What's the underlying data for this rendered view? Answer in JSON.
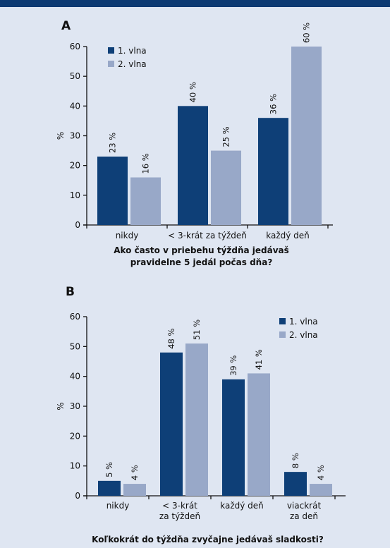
{
  "colors": {
    "series1": "#0e3f77",
    "series2": "#98a8c8",
    "background": "#dfe6f2",
    "topbar": "#0d3a73"
  },
  "chart_data": [
    {
      "type": "bar",
      "panel_label": "A",
      "title": "Ako často v priebehu týždňa jedávaš pravidelne 5 jedál počas dňa?",
      "title_lines": [
        "Ako často v priebehu týždňa jedávaš",
        "pravidelne 5 jedál počas dňa?"
      ],
      "ylabel": "%",
      "ylim": [
        0,
        60
      ],
      "yticks": [
        0,
        10,
        20,
        30,
        40,
        50,
        60
      ],
      "legend_position": "top-left",
      "categories": [
        [
          "nikdy"
        ],
        [
          "< 3-krát za týždeň"
        ],
        [
          "každý deň"
        ]
      ],
      "series": [
        {
          "name": "1. vlna",
          "values": [
            23,
            40,
            36
          ],
          "labels": [
            "23 %",
            "40 %",
            "36 %"
          ]
        },
        {
          "name": "2. vlna",
          "values": [
            16,
            25,
            60
          ],
          "labels": [
            "16 %",
            "25 %",
            "60 %"
          ]
        }
      ]
    },
    {
      "type": "bar",
      "panel_label": "B",
      "title": "Koľkokrát do týždňa zvyčajne jedávaš sladkosti?",
      "title_lines": [
        "Koľkokrát do týždňa zvyčajne jedávaš sladkosti?"
      ],
      "ylabel": "%",
      "ylim": [
        0,
        60
      ],
      "yticks": [
        0,
        10,
        20,
        30,
        40,
        50,
        60
      ],
      "legend_position": "top-right",
      "categories": [
        [
          "nikdy"
        ],
        [
          "< 3-krát",
          "za týždeň"
        ],
        [
          "každý deň"
        ],
        [
          "viackrát",
          "za deň"
        ]
      ],
      "series": [
        {
          "name": "1. vlna",
          "values": [
            5,
            48,
            39,
            8
          ],
          "labels": [
            "5 %",
            "48 %",
            "39 %",
            "8 %"
          ]
        },
        {
          "name": "2. vlna",
          "values": [
            4,
            51,
            41,
            4
          ],
          "labels": [
            "4 %",
            "51 %",
            "41 %",
            "4 %"
          ]
        }
      ]
    }
  ]
}
